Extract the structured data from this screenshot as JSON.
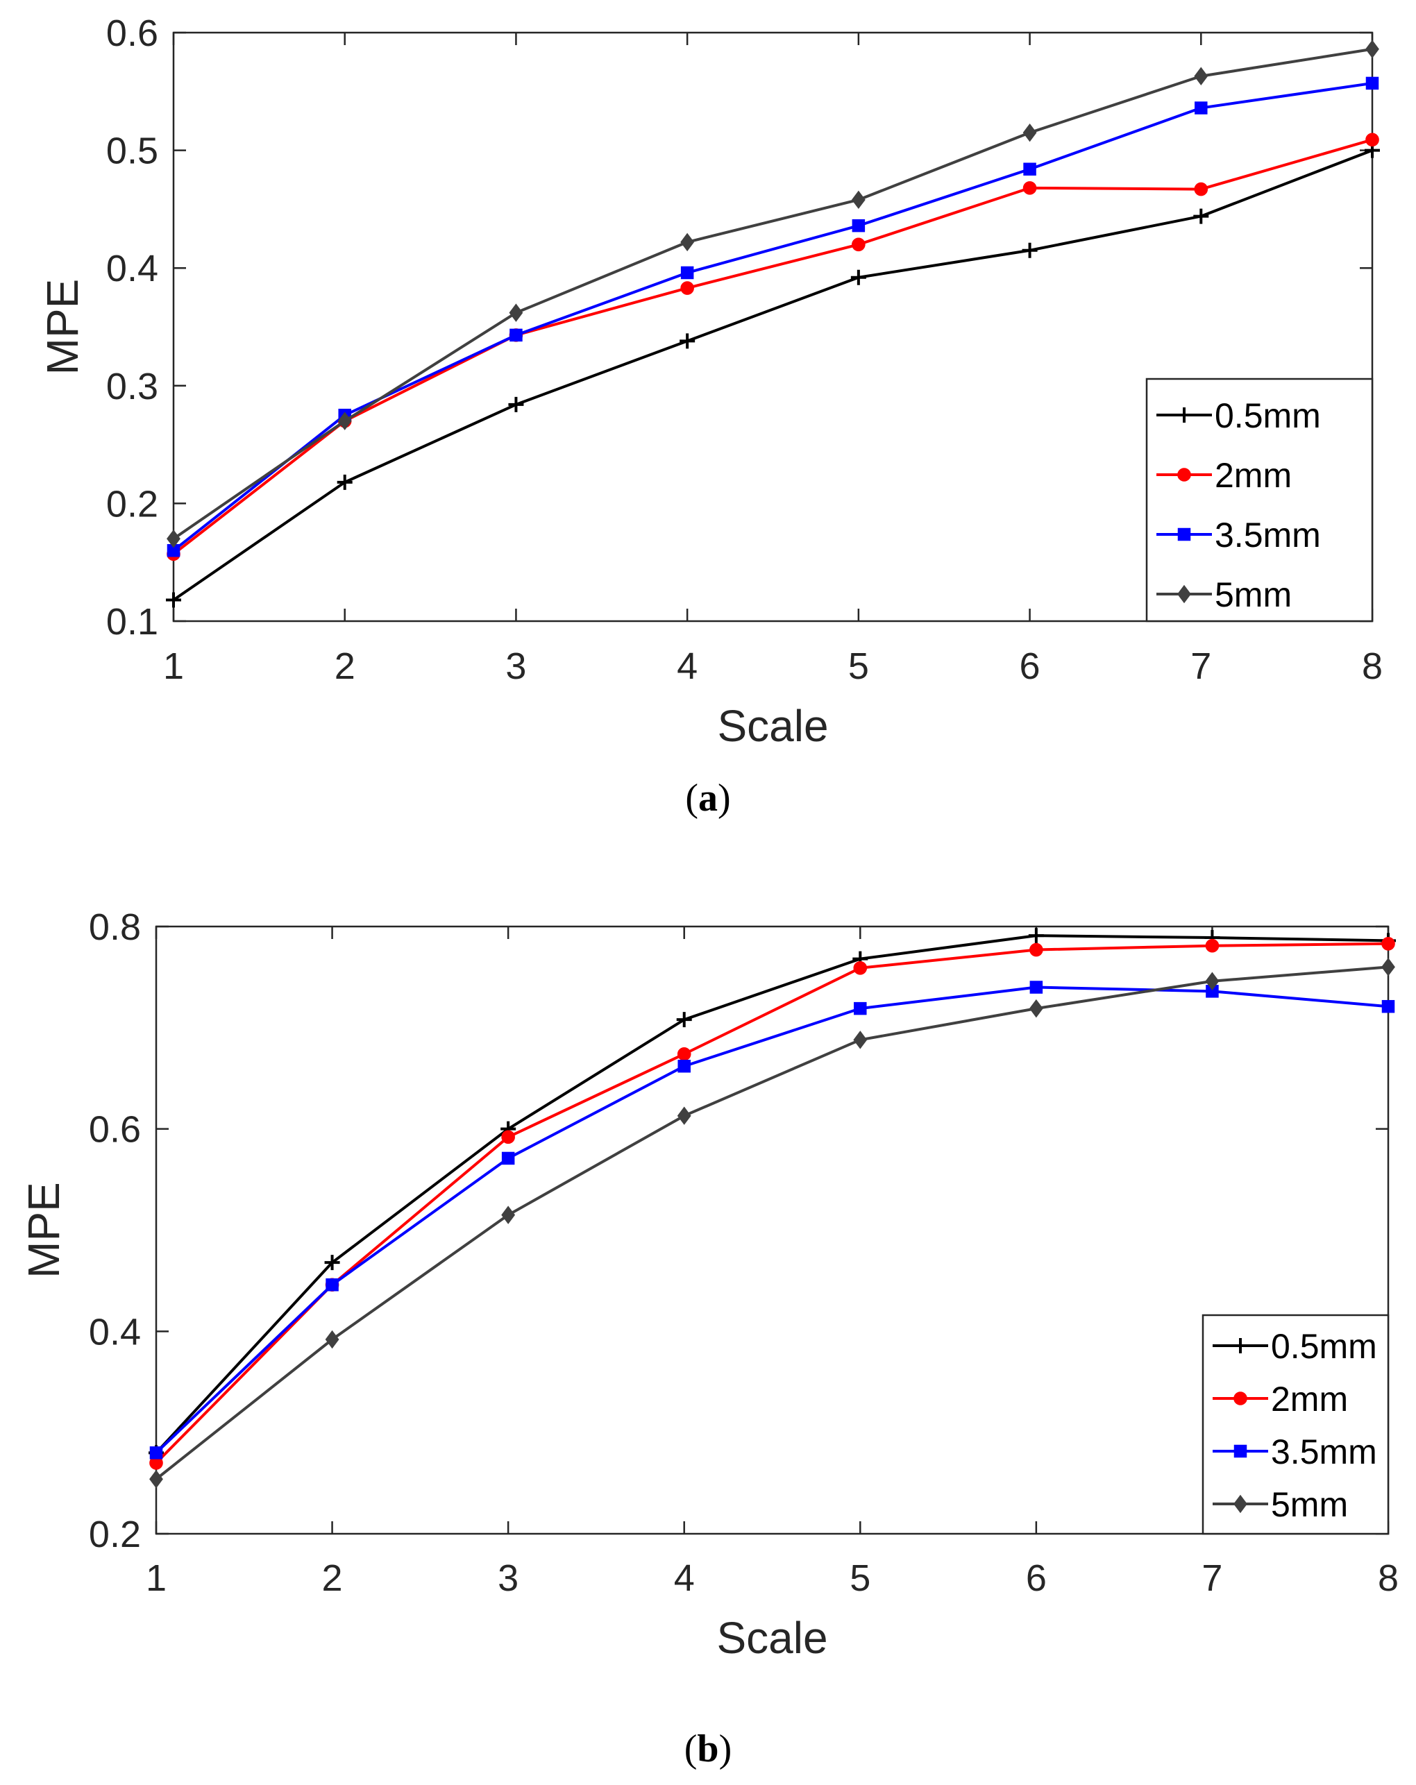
{
  "chart_data": [
    {
      "panel_label": "a",
      "type": "line",
      "xlabel": "Scale",
      "ylabel": "MPE",
      "xlim": [
        1,
        8
      ],
      "ylim": [
        0.1,
        0.6
      ],
      "xticks": [
        1,
        2,
        3,
        4,
        5,
        6,
        7,
        8
      ],
      "yticks": [
        0.1,
        0.2,
        0.3,
        0.4,
        0.5,
        0.6
      ],
      "ytick_labels": [
        "0.1",
        "0.2",
        "0.3",
        "0.4",
        "0.5",
        "0.6"
      ],
      "legend_position": "lower-right",
      "x": [
        1,
        2,
        3,
        4,
        5,
        6,
        7,
        8
      ],
      "series": [
        {
          "name": "0.5mm",
          "color": "#000000",
          "marker": "plus",
          "values": [
            0.118,
            0.218,
            0.284,
            0.338,
            0.392,
            0.415,
            0.444,
            0.5
          ]
        },
        {
          "name": "2mm",
          "color": "#ff0000",
          "marker": "circle",
          "values": [
            0.157,
            0.27,
            0.343,
            0.383,
            0.42,
            0.468,
            0.467,
            0.509
          ]
        },
        {
          "name": "3.5mm",
          "color": "#0000ff",
          "marker": "square",
          "values": [
            0.16,
            0.275,
            0.343,
            0.396,
            0.436,
            0.484,
            0.536,
            0.557
          ]
        },
        {
          "name": "5mm",
          "color": "#404040",
          "marker": "diamond",
          "values": [
            0.17,
            0.27,
            0.362,
            0.422,
            0.458,
            0.515,
            0.563,
            0.586
          ]
        }
      ]
    },
    {
      "panel_label": "b",
      "type": "line",
      "xlabel": "Scale",
      "ylabel": "MPE",
      "xlim": [
        1,
        8
      ],
      "ylim": [
        0.2,
        0.8
      ],
      "xticks": [
        1,
        2,
        3,
        4,
        5,
        6,
        7,
        8
      ],
      "yticks": [
        0.2,
        0.4,
        0.6,
        0.8
      ],
      "ytick_labels": [
        "0.2",
        "0.4",
        "0.6",
        "0.8"
      ],
      "legend_position": "lower-right",
      "x": [
        1,
        2,
        3,
        4,
        5,
        6,
        7,
        8
      ],
      "series": [
        {
          "name": "0.5mm",
          "color": "#000000",
          "marker": "plus",
          "values": [
            0.28,
            0.468,
            0.6,
            0.708,
            0.768,
            0.791,
            0.789,
            0.786
          ]
        },
        {
          "name": "2mm",
          "color": "#ff0000",
          "marker": "circle",
          "values": [
            0.27,
            0.446,
            0.592,
            0.674,
            0.759,
            0.777,
            0.781,
            0.783
          ]
        },
        {
          "name": "3.5mm",
          "color": "#0000ff",
          "marker": "square",
          "values": [
            0.28,
            0.446,
            0.571,
            0.662,
            0.719,
            0.74,
            0.736,
            0.721
          ]
        },
        {
          "name": "5mm",
          "color": "#404040",
          "marker": "diamond",
          "values": [
            0.254,
            0.392,
            0.515,
            0.613,
            0.688,
            0.719,
            0.746,
            0.76
          ]
        }
      ]
    }
  ]
}
